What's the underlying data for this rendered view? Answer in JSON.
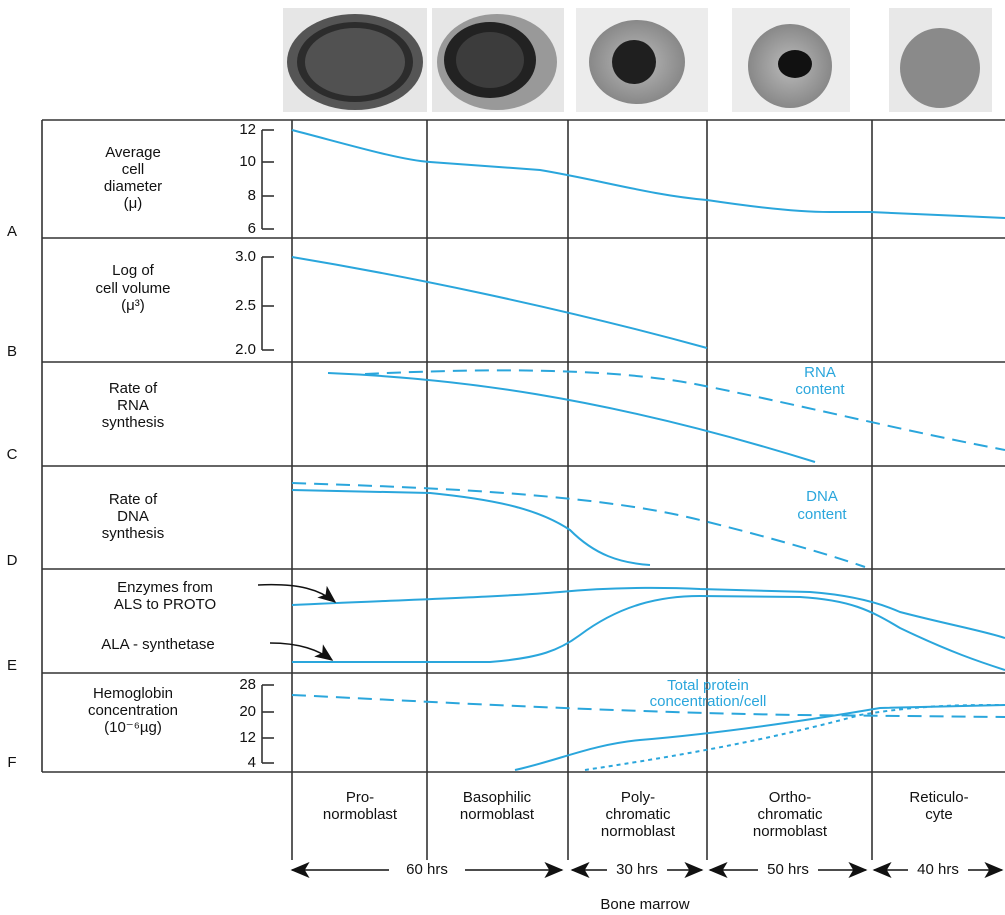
{
  "rows": [
    {
      "letter": "A",
      "label": [
        "Average",
        "cell",
        "diameter",
        "(μ)"
      ],
      "ticks": [
        "12",
        "10",
        "8",
        "6"
      ]
    },
    {
      "letter": "B",
      "label": [
        "Log of",
        "cell volume",
        "(μ³)"
      ],
      "ticks": [
        "3.0",
        "2.5",
        "2.0"
      ]
    },
    {
      "letter": "C",
      "label": [
        "Rate of",
        "RNA",
        "synthesis"
      ]
    },
    {
      "letter": "D",
      "label": [
        "Rate of",
        "DNA",
        "synthesis"
      ]
    },
    {
      "letter": "E",
      "label": [
        "Enzymes from",
        "ALS to PROTO",
        "ALA - synthetase"
      ]
    },
    {
      "letter": "F",
      "label": [
        "Hemoglobin",
        "concentration",
        "(10⁻⁶µg)"
      ],
      "ticks": [
        "28",
        "20",
        "12",
        "4"
      ]
    }
  ],
  "annotations": {
    "rna": [
      "RNA",
      "content"
    ],
    "dna": [
      "DNA",
      "content"
    ],
    "total_protein": [
      "Total protein",
      "concentration/cell"
    ]
  },
  "stages": [
    [
      "Pro-",
      "normoblast"
    ],
    [
      "Basophilic",
      "normoblast"
    ],
    [
      "Poly-",
      "chromatic",
      "normoblast"
    ],
    [
      "Ortho-",
      "chromatic",
      "normoblast"
    ],
    [
      "Reticulo-",
      "cyte"
    ]
  ],
  "durations": [
    "60 hrs",
    "30 hrs",
    "50 hrs",
    "40 hrs"
  ],
  "footer": "Bone marrow"
}
